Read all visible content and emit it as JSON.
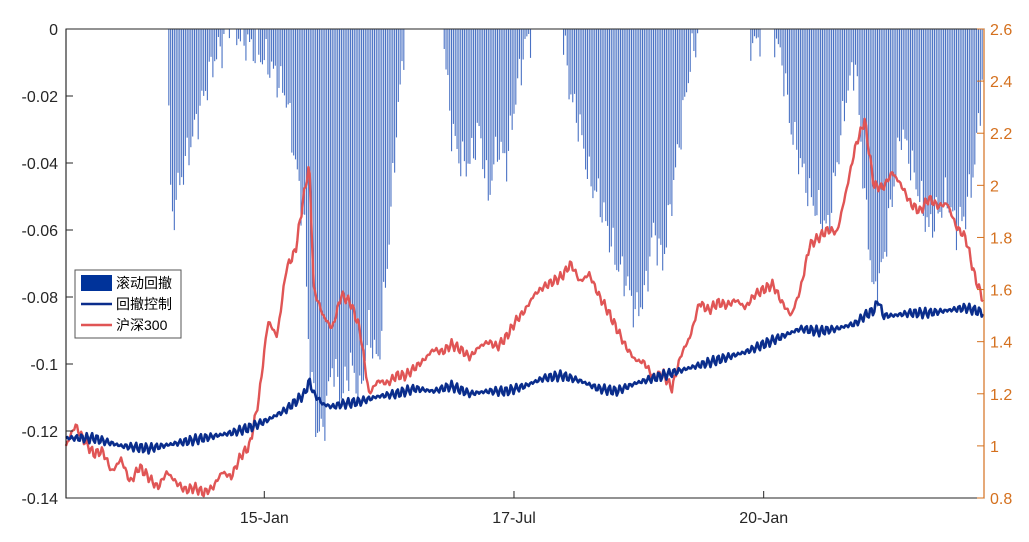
{
  "chart_data": {
    "type": "area",
    "title": "",
    "xlabel": "",
    "ylabel_left": "",
    "ylabel_right": "",
    "x_tick_labels": [
      "15-Jan",
      "17-Jul",
      "20-Jan"
    ],
    "y_left": {
      "lim": [
        -0.14,
        0
      ],
      "ticks": [
        0,
        -0.02,
        -0.04,
        -0.06,
        -0.08,
        -0.1,
        -0.12,
        -0.14
      ],
      "tick_labels": [
        "0",
        "-0.02",
        "-0.04",
        "-0.06",
        "-0.08",
        "-0.1",
        "-0.12",
        "-0.14"
      ]
    },
    "y_right": {
      "lim": [
        0.8,
        2.6
      ],
      "ticks": [
        2.6,
        2.4,
        2.2,
        2,
        1.8,
        1.6,
        1.4,
        1.2,
        1,
        0.8
      ],
      "tick_labels": [
        "2.6",
        "2.4",
        "2.2",
        "2",
        "1.8",
        "1.6",
        "1.4",
        "1.2",
        "1",
        "0.8"
      ]
    },
    "x_range": [
      0,
      100
    ],
    "x_ticks": [
      21.6,
      48.8,
      76.0
    ],
    "legend": {
      "placement": "middle-left",
      "entries": [
        {
          "label": "滚动回撤",
          "color": "#00339a"
        },
        {
          "label": "回撤控制",
          "color": "#0a2d8c"
        },
        {
          "label": "沪深300",
          "color": "#e05555"
        }
      ]
    },
    "colors": {
      "drawdown_fill": "#4a72c4",
      "control_line": "#0a2d8c",
      "index_line": "#e05555",
      "right_axis": "#d4701e",
      "left_axis": "#000000"
    },
    "series": [
      {
        "name": "滚动回撤",
        "kind": "bar",
        "axis": "left",
        "x": [
          0,
          10,
          11,
          11.5,
          12,
          14,
          16,
          18,
          20,
          22,
          24,
          26,
          26.5,
          27,
          27.3,
          28,
          29,
          30,
          31,
          32,
          33,
          34,
          35,
          36,
          37,
          38,
          39,
          40,
          41,
          42,
          43,
          44,
          45,
          46,
          47,
          48,
          49,
          50,
          51,
          52,
          53,
          54,
          55,
          56,
          57,
          58,
          59,
          60,
          61,
          62,
          63,
          64,
          65,
          66,
          67,
          68,
          69,
          70,
          71,
          72,
          73,
          74,
          75,
          76,
          77,
          78,
          79,
          80,
          81,
          82,
          83,
          84,
          85,
          86,
          87,
          88,
          89,
          90,
          91,
          92,
          93,
          94,
          95,
          96,
          97,
          98,
          99,
          100
        ],
        "y": [
          0,
          0,
          0,
          -0.06,
          -0.05,
          -0.03,
          -0.01,
          0,
          -0.005,
          -0.01,
          -0.02,
          -0.06,
          -0.1,
          -0.11,
          -0.12,
          -0.12,
          -0.1,
          -0.11,
          -0.1,
          -0.11,
          -0.09,
          -0.1,
          -0.07,
          -0.03,
          0,
          0,
          0,
          0,
          0,
          -0.03,
          -0.04,
          -0.04,
          -0.03,
          -0.05,
          -0.035,
          -0.04,
          -0.02,
          -0.005,
          0,
          0,
          0,
          0,
          -0.02,
          -0.03,
          -0.045,
          -0.05,
          -0.06,
          -0.07,
          -0.075,
          -0.085,
          -0.08,
          -0.06,
          -0.07,
          -0.05,
          -0.03,
          -0.01,
          0,
          0,
          0,
          0,
          0,
          0,
          -0.005,
          0,
          0,
          -0.01,
          -0.03,
          -0.04,
          -0.05,
          -0.055,
          -0.06,
          -0.04,
          -0.02,
          -0.01,
          -0.05,
          -0.08,
          -0.07,
          -0.05,
          -0.03,
          -0.04,
          -0.05,
          -0.06,
          -0.055,
          -0.05,
          -0.06,
          -0.055,
          -0.04,
          -0.01
        ]
      },
      {
        "name": "回撤控制",
        "kind": "line",
        "axis": "right",
        "x": [
          0,
          3,
          6,
          9,
          12,
          15,
          18,
          20,
          22,
          24,
          25,
          26,
          26.5,
          27,
          28,
          29,
          30,
          32,
          34,
          36,
          38,
          40,
          42,
          44,
          46,
          48,
          50,
          52,
          54,
          56,
          58,
          60,
          62,
          64,
          66,
          68,
          70,
          72,
          74,
          76,
          78,
          80,
          82,
          84,
          86,
          87,
          88,
          88.5,
          89,
          90,
          92,
          94,
          96,
          98,
          100
        ],
        "y": [
          1.03,
          1.03,
          1.0,
          0.99,
          1.01,
          1.03,
          1.05,
          1.07,
          1.1,
          1.14,
          1.17,
          1.2,
          1.25,
          1.2,
          1.16,
          1.15,
          1.16,
          1.17,
          1.19,
          1.2,
          1.22,
          1.21,
          1.23,
          1.2,
          1.21,
          1.21,
          1.23,
          1.26,
          1.27,
          1.25,
          1.22,
          1.21,
          1.24,
          1.26,
          1.28,
          1.3,
          1.32,
          1.34,
          1.36,
          1.39,
          1.42,
          1.45,
          1.44,
          1.45,
          1.47,
          1.5,
          1.52,
          1.56,
          1.5,
          1.5,
          1.51,
          1.51,
          1.52,
          1.53,
          1.51
        ]
      },
      {
        "name": "沪深300",
        "kind": "line",
        "axis": "right",
        "x": [
          0,
          1,
          2,
          3,
          4,
          5,
          6,
          7,
          8,
          9,
          10,
          11,
          12,
          13,
          14,
          15,
          16,
          17,
          18,
          19,
          20,
          21,
          22,
          23,
          24,
          25,
          26,
          26.5,
          27,
          28,
          29,
          30,
          31,
          32,
          33,
          34,
          35,
          36,
          37,
          38,
          39,
          40,
          41,
          42,
          43,
          44,
          45,
          46,
          47,
          48,
          49,
          50,
          51,
          52,
          53,
          54,
          55,
          56,
          57,
          58,
          59,
          60,
          61,
          62,
          63,
          64,
          65,
          66,
          67,
          68,
          69,
          70,
          71,
          72,
          73,
          74,
          75,
          76,
          77,
          78,
          79,
          80,
          81,
          82,
          83,
          84,
          85,
          86,
          87,
          88,
          89,
          90,
          91,
          92,
          93,
          94,
          95,
          96,
          97,
          98,
          99,
          100
        ],
        "y": [
          1.0,
          1.08,
          1.02,
          0.97,
          0.98,
          0.9,
          0.95,
          0.86,
          0.92,
          0.88,
          0.84,
          0.9,
          0.86,
          0.83,
          0.84,
          0.82,
          0.84,
          0.9,
          0.88,
          0.96,
          1.0,
          1.18,
          1.48,
          1.42,
          1.68,
          1.75,
          1.98,
          2.08,
          1.6,
          1.5,
          1.45,
          1.58,
          1.55,
          1.45,
          1.2,
          1.25,
          1.24,
          1.27,
          1.27,
          1.3,
          1.33,
          1.37,
          1.36,
          1.39,
          1.37,
          1.34,
          1.38,
          1.4,
          1.38,
          1.42,
          1.48,
          1.52,
          1.58,
          1.61,
          1.63,
          1.65,
          1.7,
          1.63,
          1.66,
          1.58,
          1.52,
          1.45,
          1.38,
          1.33,
          1.32,
          1.26,
          1.28,
          1.22,
          1.35,
          1.42,
          1.55,
          1.52,
          1.55,
          1.54,
          1.56,
          1.53,
          1.58,
          1.6,
          1.62,
          1.55,
          1.5,
          1.6,
          1.77,
          1.8,
          1.83,
          1.82,
          1.98,
          2.15,
          2.25,
          2.0,
          1.99,
          2.05,
          2.0,
          1.93,
          1.9,
          1.95,
          1.92,
          1.93,
          1.84,
          1.8,
          1.65,
          1.55
        ]
      }
    ]
  }
}
